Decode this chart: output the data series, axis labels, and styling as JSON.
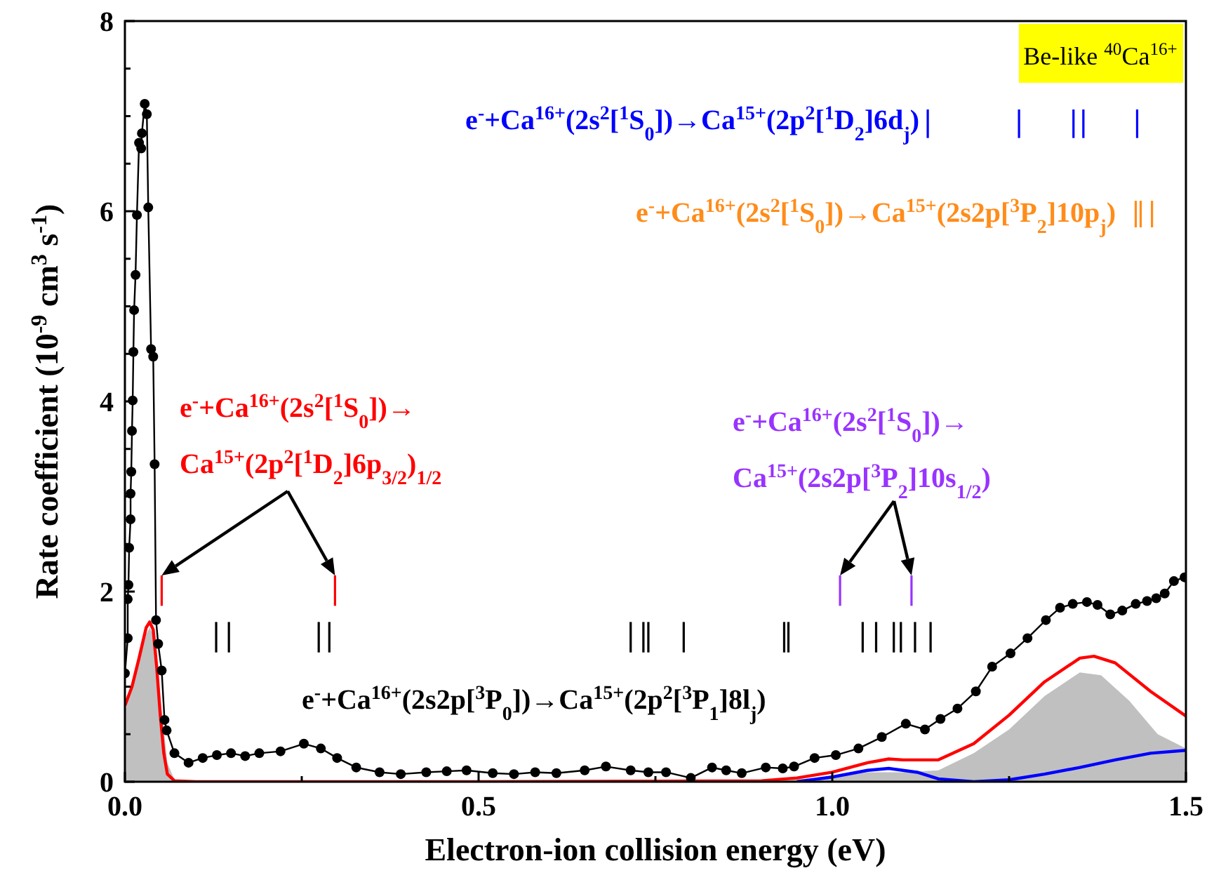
{
  "chart_data": {
    "type": "line",
    "xlabel": "Electron-ion collision energy (eV)",
    "ylabel": "Rate coefficient (10$^{-9}$ cm$^{3}$ s$^{-1}$)",
    "xlim": [
      0,
      1.5
    ],
    "ylim": [
      0,
      8
    ],
    "xticks": [
      {
        "value": 0,
        "label": "0.0"
      },
      {
        "value": 0.25,
        "label": null
      },
      {
        "value": 0.5,
        "label": "0.5"
      },
      {
        "value": 0.75,
        "label": null
      },
      {
        "value": 1,
        "label": "1.0"
      },
      {
        "value": 1.25,
        "label": null
      },
      {
        "value": 1.5,
        "label": "1.5"
      }
    ],
    "yticks": [
      0,
      {
        "value": 0.5,
        "label": null
      },
      {
        "value": 1,
        "label": null
      },
      {
        "value": 1.5,
        "label": null
      },
      2,
      {
        "value": 2.5,
        "label": null
      },
      {
        "value": 3,
        "label": null
      },
      {
        "value": 3.5,
        "label": null
      },
      4,
      {
        "value": 4.5,
        "label": null
      },
      {
        "value": 5,
        "label": null
      },
      {
        "value": 5.5,
        "label": null
      },
      6,
      {
        "value": 6.5,
        "label": null
      },
      {
        "value": 7,
        "label": null
      },
      {
        "value": 7.5,
        "label": null
      },
      8
    ],
    "annotations": [
      "Be-like $^{40}$Ca$^{16+}$"
    ],
    "series": [
      {
        "type": "area",
        "color": "#c0c0c0",
        "x": [
          0,
          0.02,
          0.03,
          0.035,
          0.04,
          0.05,
          0.06,
          0.07,
          0.1,
          0.9,
          1.0,
          1.05,
          1.1,
          1.15,
          1.2,
          1.25,
          1.3,
          1.35,
          1.38,
          1.42,
          1.46,
          1.5
        ],
        "values": [
          0.75,
          1.25,
          1.55,
          1.62,
          1.55,
          0.9,
          0.2,
          0.02,
          0,
          0,
          0.05,
          0.1,
          0.1,
          0.12,
          0.3,
          0.55,
          0.9,
          1.15,
          1.12,
          0.85,
          0.5,
          0.35
        ]
      },
      {
        "color": "#ff0000",
        "marker": "none",
        "x": [
          0,
          0.01,
          0.02,
          0.03,
          0.035,
          0.04,
          0.045,
          0.05,
          0.055,
          0.06,
          0.07,
          0.1,
          0.5,
          0.9,
          0.95,
          1.0,
          1.05,
          1.08,
          1.1,
          1.15,
          1.2,
          1.25,
          1.3,
          1.35,
          1.37,
          1.4,
          1.45,
          1.5
        ],
        "values": [
          0.8,
          1.0,
          1.3,
          1.62,
          1.68,
          1.6,
          1.2,
          0.7,
          0.3,
          0.08,
          0.01,
          0,
          0,
          0.01,
          0.04,
          0.1,
          0.2,
          0.24,
          0.23,
          0.23,
          0.4,
          0.7,
          1.05,
          1.3,
          1.32,
          1.25,
          0.95,
          0.69
        ]
      },
      {
        "color": "#0000ff",
        "marker": "none",
        "x": [
          0.95,
          1.0,
          1.05,
          1.08,
          1.12,
          1.15,
          1.2,
          1.25,
          1.3,
          1.35,
          1.4,
          1.45,
          1.5
        ],
        "values": [
          0,
          0.05,
          0.12,
          0.14,
          0.1,
          0.03,
          0,
          0.02,
          0.08,
          0.15,
          0.23,
          0.3,
          0.33
        ]
      },
      {
        "color": "#000000",
        "marker": "circle",
        "x": [
          0.0,
          0.004,
          0.004,
          0.005,
          0.006,
          0.008,
          0.008,
          0.009,
          0.01,
          0.011,
          0.012,
          0.013,
          0.015,
          0.017,
          0.02,
          0.023,
          0.024,
          0.028,
          0.031,
          0.033,
          0.037,
          0.04,
          0.042,
          0.044,
          0.047,
          0.052,
          0.056,
          0.059,
          0.07,
          0.09,
          0.11,
          0.13,
          0.15,
          0.17,
          0.19,
          0.22,
          0.253,
          0.277,
          0.3,
          0.327,
          0.36,
          0.39,
          0.426,
          0.455,
          0.483,
          0.52,
          0.55,
          0.58,
          0.61,
          0.65,
          0.68,
          0.715,
          0.74,
          0.765,
          0.8,
          0.83,
          0.85,
          0.872,
          0.906,
          0.93,
          0.946,
          0.975,
          1.005,
          1.037,
          1.07,
          1.104,
          1.131,
          1.153,
          1.177,
          1.203,
          1.226,
          1.252,
          1.276,
          1.302,
          1.322,
          1.34,
          1.36,
          1.375,
          1.393,
          1.41,
          1.429,
          1.445,
          1.458,
          1.47,
          1.483,
          1.498
        ],
        "values": [
          1.14,
          1.51,
          1.92,
          2.07,
          2.46,
          2.76,
          3.03,
          3.26,
          3.69,
          4.01,
          4.52,
          4.96,
          5.33,
          5.96,
          6.72,
          6.66,
          6.82,
          7.13,
          7.02,
          6.04,
          4.55,
          4.47,
          3.34,
          1.7,
          1.45,
          1.17,
          0.65,
          0.54,
          0.3,
          0.2,
          0.25,
          0.28,
          0.3,
          0.27,
          0.3,
          0.32,
          0.4,
          0.35,
          0.25,
          0.15,
          0.1,
          0.08,
          0.1,
          0.11,
          0.12,
          0.09,
          0.08,
          0.1,
          0.09,
          0.12,
          0.16,
          0.12,
          0.1,
          0.1,
          0.04,
          0.15,
          0.12,
          0.09,
          0.15,
          0.14,
          0.16,
          0.25,
          0.28,
          0.35,
          0.47,
          0.61,
          0.55,
          0.66,
          0.77,
          0.95,
          1.21,
          1.35,
          1.51,
          1.7,
          1.83,
          1.87,
          1.89,
          1.86,
          1.76,
          1.8,
          1.87,
          1.9,
          1.93,
          1.98,
          2.11,
          2.15
        ]
      },
      {
        "type": "bar",
        "name": "e$^{-}$+Ca$^{16+}$(2s$^{2}$[$^{1}$S$_{0}$])→Ca$^{15+}$(2p$^{2}$[$^{1}$D$_{2}$]6p$_{3/2}$)$_{1/2}$",
        "color": "#ff0000",
        "x": [
          0.052,
          0.297
        ],
        "base": [
          1.85,
          1.85
        ],
        "values": [
          0.32,
          0.32
        ]
      },
      {
        "type": "bar",
        "name": "e$^{-}$+Ca$^{16+}$(2s$^{2}$[$^{1}$S$_{0}$])→Ca$^{15+}$(2s2p[$^{3}$P$_{2}$]10s$_{1/2}$)",
        "color": "#9933ff",
        "x": [
          1.011,
          1.112
        ],
        "base": [
          1.85,
          1.85
        ],
        "values": [
          0.32,
          0.32
        ]
      },
      {
        "type": "bar",
        "name": "e$^{-}$+Ca$^{16+}$(2s2p[$^{3}$P$_{0}$])→Ca$^{15+}$(2p$^{2}$[$^{3}$P$_{1}$]8l$_{j}$)",
        "color": "#000000",
        "x": [
          0.129,
          0.147,
          0.274,
          0.289,
          0.715,
          0.733,
          0.74,
          0.79,
          0.932,
          0.938,
          1.043,
          1.062,
          1.087,
          1.097,
          1.117,
          1.139
        ],
        "base": [
          1.36,
          1.36,
          1.36,
          1.36,
          1.36,
          1.36,
          1.36,
          1.36,
          1.36,
          1.36,
          1.36,
          1.36,
          1.36,
          1.36,
          1.36,
          1.36
        ],
        "values": [
          0.32,
          0.32,
          0.32,
          0.32,
          0.32,
          0.32,
          0.32,
          0.32,
          0.32,
          0.32,
          0.32,
          0.32,
          0.32,
          0.32,
          0.32,
          0.32
        ]
      },
      {
        "type": "bar",
        "name": "e$^{-}$+Ca$^{16+}$(2s$^{2}$[$^{1}$S$_{0}$])→Ca$^{15+}$(2p$^{2}$[$^{1}$D$_{2}$]6d$_{j}$)",
        "color": "#0000ff",
        "x": [
          1.135,
          1.264,
          1.341,
          1.355,
          1.431
        ],
        "base": [
          6.77,
          6.77,
          6.77,
          6.77,
          6.77
        ],
        "values": [
          0.3,
          0.3,
          0.3,
          0.3,
          0.3
        ]
      },
      {
        "type": "bar",
        "name": "e$^{-}$+Ca$^{16+}$(2s$^{2}$[$^{1}$S$_{0}$])→Ca$^{15+}$(2s2p[$^{3}$P$_{2}$]10p$_{j}$)",
        "color": "#ff8c1a",
        "x": [
          1.429,
          1.436,
          1.452
        ],
        "base": [
          5.83,
          5.83,
          5.83
        ],
        "values": [
          0.28,
          0.28,
          0.28
        ]
      }
    ]
  }
}
